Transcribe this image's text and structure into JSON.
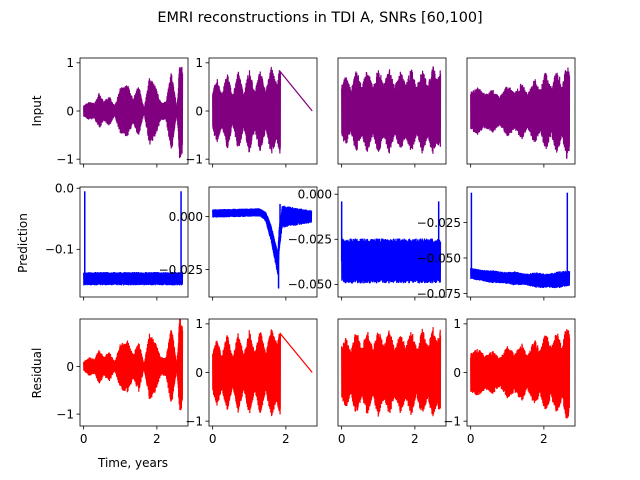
{
  "figure": {
    "title": "EMRI reconstructions in TDI A, SNRs [60,100]",
    "row_labels": [
      "Input",
      "Prediction",
      "Residual"
    ],
    "xlabel": "Time, years"
  },
  "colors": {
    "input": "#800080",
    "prediction": "#0000ff",
    "residual": "#ff0000"
  },
  "chart_data": [
    {
      "panel": "input-1",
      "type": "line",
      "color": "#800080",
      "xlim": [
        -0.1,
        2.85
      ],
      "ylim": [
        -1.1,
        1.1
      ],
      "xticks": [
        0,
        2
      ],
      "xtick_labels": [],
      "yticks": [
        -1,
        0,
        1
      ],
      "ytick_labels": [
        "−1",
        "0",
        "1"
      ],
      "t_range": [
        0.0,
        2.7
      ],
      "center": 0,
      "envelope": [
        [
          0.0,
          0.12
        ],
        [
          0.15,
          0.2
        ],
        [
          0.3,
          0.16
        ],
        [
          0.42,
          0.38
        ],
        [
          0.55,
          0.2
        ],
        [
          0.7,
          0.32
        ],
        [
          0.85,
          0.1
        ],
        [
          1.0,
          0.48
        ],
        [
          1.2,
          0.55
        ],
        [
          1.35,
          0.25
        ],
        [
          1.5,
          0.55
        ],
        [
          1.65,
          0.05
        ],
        [
          1.8,
          0.72
        ],
        [
          1.95,
          0.55
        ],
        [
          2.1,
          0.2
        ],
        [
          2.25,
          0.2
        ],
        [
          2.4,
          0.85
        ],
        [
          2.55,
          0.05
        ],
        [
          2.62,
          1.0
        ],
        [
          2.7,
          0.9
        ]
      ]
    },
    {
      "panel": "input-2",
      "type": "line",
      "color": "#800080",
      "xlim": [
        -0.1,
        2.85
      ],
      "ylim": [
        -1.1,
        1.1
      ],
      "xticks": [
        0,
        2
      ],
      "xtick_labels": [],
      "yticks": [
        -1,
        0,
        1
      ],
      "ytick_labels": [
        "−1",
        "0",
        "1"
      ],
      "t_range": [
        0.0,
        1.85
      ],
      "center": 0,
      "tail_to": 2.72,
      "envelope": [
        [
          0.0,
          0.4
        ],
        [
          0.12,
          0.7
        ],
        [
          0.25,
          0.35
        ],
        [
          0.4,
          0.8
        ],
        [
          0.55,
          0.3
        ],
        [
          0.7,
          0.85
        ],
        [
          0.85,
          0.35
        ],
        [
          1.0,
          0.9
        ],
        [
          1.15,
          0.4
        ],
        [
          1.3,
          0.88
        ],
        [
          1.45,
          0.4
        ],
        [
          1.6,
          0.92
        ],
        [
          1.75,
          0.6
        ],
        [
          1.85,
          0.95
        ]
      ]
    },
    {
      "panel": "input-3",
      "type": "line",
      "color": "#800080",
      "xlim": [
        -0.1,
        2.85
      ],
      "ylim": [
        -1.1,
        1.1
      ],
      "xticks": [
        0,
        2
      ],
      "xtick_labels": [],
      "yticks": [],
      "ytick_labels": [],
      "t_range": [
        0.0,
        2.7
      ],
      "center": 0,
      "envelope": [
        [
          0.0,
          0.55
        ],
        [
          0.12,
          0.75
        ],
        [
          0.25,
          0.45
        ],
        [
          0.4,
          0.9
        ],
        [
          0.55,
          0.5
        ],
        [
          0.7,
          0.9
        ],
        [
          0.85,
          0.5
        ],
        [
          1.0,
          0.92
        ],
        [
          1.15,
          0.55
        ],
        [
          1.3,
          0.9
        ],
        [
          1.45,
          0.5
        ],
        [
          1.6,
          0.85
        ],
        [
          1.75,
          0.55
        ],
        [
          1.9,
          0.9
        ],
        [
          2.05,
          0.5
        ],
        [
          2.2,
          0.92
        ],
        [
          2.35,
          0.55
        ],
        [
          2.5,
          0.95
        ],
        [
          2.6,
          0.65
        ],
        [
          2.7,
          0.9
        ]
      ]
    },
    {
      "panel": "input-4",
      "type": "line",
      "color": "#800080",
      "xlim": [
        -0.1,
        2.85
      ],
      "ylim": [
        -1.1,
        1.1
      ],
      "xticks": [
        0,
        2
      ],
      "xtick_labels": [],
      "yticks": [],
      "ytick_labels": [],
      "t_range": [
        0.0,
        2.7
      ],
      "center": 0,
      "envelope": [
        [
          0.0,
          0.4
        ],
        [
          0.2,
          0.5
        ],
        [
          0.4,
          0.35
        ],
        [
          0.6,
          0.45
        ],
        [
          0.8,
          0.3
        ],
        [
          1.0,
          0.55
        ],
        [
          1.2,
          0.4
        ],
        [
          1.4,
          0.6
        ],
        [
          1.55,
          0.35
        ],
        [
          1.75,
          0.7
        ],
        [
          1.9,
          0.45
        ],
        [
          2.05,
          0.85
        ],
        [
          2.2,
          0.5
        ],
        [
          2.35,
          0.9
        ],
        [
          2.5,
          0.55
        ],
        [
          2.62,
          1.0
        ],
        [
          2.7,
          0.85
        ]
      ]
    },
    {
      "panel": "prediction-1",
      "type": "line",
      "color": "#0000ff",
      "xlim": [
        -0.1,
        2.85
      ],
      "ylim": [
        -0.178,
        0.002
      ],
      "xticks": [
        0,
        2
      ],
      "xtick_labels": [],
      "yticks": [
        0.0,
        -0.1
      ],
      "ytick_labels": [
        "0.0",
        "−0.1"
      ],
      "t_range": [
        0.0,
        2.7
      ],
      "center": -0.148,
      "envelope": [
        [
          0.0,
          0.011
        ],
        [
          0.5,
          0.011
        ],
        [
          1.0,
          0.011
        ],
        [
          1.5,
          0.011
        ],
        [
          2.0,
          0.011
        ],
        [
          2.7,
          0.011
        ]
      ],
      "spikes": [
        {
          "t": 0.03,
          "value": -0.005
        },
        {
          "t": 2.66,
          "value": -0.005
        }
      ]
    },
    {
      "panel": "prediction-2",
      "type": "line",
      "color": "#0000ff",
      "xlim": [
        -0.1,
        2.85
      ],
      "ylim": [
        -0.038,
        0.014
      ],
      "xticks": [
        0,
        2
      ],
      "xtick_labels": [],
      "yticks": [
        0.0,
        -0.025
      ],
      "ytick_labels": [
        "0.000",
        "−0.025"
      ],
      "t_range": [
        0.0,
        2.7
      ],
      "center": 0.0,
      "envelope": [
        [
          0.0,
          0.002
        ],
        [
          0.5,
          0.002
        ],
        [
          1.0,
          0.002
        ],
        [
          1.4,
          0.002
        ],
        [
          1.6,
          0.004
        ],
        [
          1.8,
          0.006
        ],
        [
          2.0,
          0.005
        ],
        [
          2.7,
          0.003
        ]
      ],
      "trend": [
        [
          0.0,
          0.0015
        ],
        [
          1.3,
          0.002
        ],
        [
          1.45,
          0.0
        ],
        [
          1.6,
          -0.008
        ],
        [
          1.7,
          -0.016
        ],
        [
          1.78,
          -0.022
        ],
        [
          1.82,
          -0.01
        ],
        [
          1.9,
          0.0
        ],
        [
          2.7,
          0.0
        ]
      ],
      "spikes": [
        {
          "t": 1.8,
          "value": -0.034
        },
        {
          "t": 1.84,
          "value": 0.006
        }
      ]
    },
    {
      "panel": "prediction-3",
      "type": "line",
      "color": "#0000ff",
      "xlim": [
        -0.1,
        2.85
      ],
      "ylim": [
        -0.057,
        0.004
      ],
      "xticks": [
        0,
        2
      ],
      "xtick_labels": [],
      "yticks": [
        0.0,
        -0.025,
        -0.05
      ],
      "ytick_labels": [
        "0.000",
        "−0.025",
        "−0.050"
      ],
      "ytick_side": "left-inside",
      "t_range": [
        0.0,
        2.7
      ],
      "center": -0.037,
      "envelope": [
        [
          0.0,
          0.0125
        ],
        [
          0.5,
          0.0125
        ],
        [
          1.0,
          0.0125
        ],
        [
          1.5,
          0.0125
        ],
        [
          2.0,
          0.0125
        ],
        [
          2.7,
          0.0125
        ]
      ],
      "spikes": [
        {
          "t": 0.0,
          "value": -0.004
        },
        {
          "t": 2.65,
          "value": -0.004
        }
      ]
    },
    {
      "panel": "prediction-4",
      "type": "line",
      "color": "#0000ff",
      "xlim": [
        -0.1,
        2.85
      ],
      "ylim": [
        -0.0775,
        -0.0
      ],
      "xticks": [
        0,
        2
      ],
      "xtick_labels": [],
      "yticks": [
        -0.025,
        -0.05,
        -0.075
      ],
      "ytick_labels": [
        "−0.025",
        "−0.050",
        "−0.075"
      ],
      "ytick_side": "left-inside",
      "t_range": [
        0.0,
        2.7
      ],
      "center": -0.0635,
      "envelope": [
        [
          0.0,
          0.004
        ],
        [
          0.3,
          0.004
        ],
        [
          0.6,
          0.0045
        ],
        [
          0.9,
          0.004
        ],
        [
          1.2,
          0.005
        ],
        [
          1.5,
          0.004
        ],
        [
          1.8,
          0.0055
        ],
        [
          2.1,
          0.005
        ],
        [
          2.4,
          0.006
        ],
        [
          2.7,
          0.0055
        ]
      ],
      "trend": [
        [
          0.0,
          -0.061
        ],
        [
          0.5,
          -0.063
        ],
        [
          1.0,
          -0.064
        ],
        [
          1.5,
          -0.065
        ],
        [
          2.0,
          -0.066
        ],
        [
          2.4,
          -0.0655
        ],
        [
          2.7,
          -0.064
        ]
      ],
      "spikes": [
        {
          "t": 0.02,
          "value": -0.004
        },
        {
          "t": 2.64,
          "value": -0.004
        }
      ]
    },
    {
      "panel": "residual-1",
      "type": "line",
      "color": "#ff0000",
      "xlim": [
        -0.1,
        2.85
      ],
      "ylim": [
        -1.25,
        1.0
      ],
      "xticks": [
        0,
        2
      ],
      "xtick_labels": [
        "0",
        "2"
      ],
      "yticks": [
        -1,
        0
      ],
      "ytick_labels": [
        "−1",
        "0"
      ],
      "t_range": [
        0.0,
        2.7
      ],
      "center": 0,
      "envelope": [
        [
          0.0,
          0.1
        ],
        [
          0.15,
          0.2
        ],
        [
          0.3,
          0.16
        ],
        [
          0.42,
          0.38
        ],
        [
          0.55,
          0.2
        ],
        [
          0.7,
          0.32
        ],
        [
          0.85,
          0.1
        ],
        [
          1.0,
          0.48
        ],
        [
          1.2,
          0.55
        ],
        [
          1.35,
          0.25
        ],
        [
          1.5,
          0.55
        ],
        [
          1.65,
          0.05
        ],
        [
          1.8,
          0.72
        ],
        [
          1.95,
          0.55
        ],
        [
          2.1,
          0.2
        ],
        [
          2.25,
          0.2
        ],
        [
          2.4,
          0.85
        ],
        [
          2.55,
          0.05
        ],
        [
          2.62,
          1.05
        ],
        [
          2.7,
          0.9
        ]
      ]
    },
    {
      "panel": "residual-2",
      "type": "line",
      "color": "#ff0000",
      "xlim": [
        -0.1,
        2.85
      ],
      "ylim": [
        -1.1,
        1.1
      ],
      "xticks": [
        0,
        2
      ],
      "xtick_labels": [
        "0",
        "2"
      ],
      "yticks": [
        -1,
        0,
        1
      ],
      "ytick_labels": [
        "−1",
        "0",
        "1"
      ],
      "t_range": [
        0.0,
        1.85
      ],
      "center": 0,
      "tail_to": 2.72,
      "envelope": [
        [
          0.0,
          0.4
        ],
        [
          0.12,
          0.7
        ],
        [
          0.25,
          0.35
        ],
        [
          0.4,
          0.8
        ],
        [
          0.55,
          0.3
        ],
        [
          0.7,
          0.85
        ],
        [
          0.85,
          0.35
        ],
        [
          1.0,
          0.9
        ],
        [
          1.15,
          0.4
        ],
        [
          1.3,
          0.88
        ],
        [
          1.45,
          0.4
        ],
        [
          1.6,
          0.92
        ],
        [
          1.75,
          0.6
        ],
        [
          1.85,
          0.95
        ]
      ]
    },
    {
      "panel": "residual-3",
      "type": "line",
      "color": "#ff0000",
      "xlim": [
        -0.1,
        2.85
      ],
      "ylim": [
        -1.1,
        1.1
      ],
      "xticks": [
        0,
        2
      ],
      "xtick_labels": [
        "0",
        "2"
      ],
      "yticks": [],
      "ytick_labels": [],
      "t_range": [
        0.0,
        2.7
      ],
      "center": 0,
      "envelope": [
        [
          0.0,
          0.55
        ],
        [
          0.12,
          0.75
        ],
        [
          0.25,
          0.45
        ],
        [
          0.4,
          0.9
        ],
        [
          0.55,
          0.5
        ],
        [
          0.7,
          0.9
        ],
        [
          0.85,
          0.5
        ],
        [
          1.0,
          0.92
        ],
        [
          1.15,
          0.55
        ],
        [
          1.3,
          0.9
        ],
        [
          1.45,
          0.5
        ],
        [
          1.6,
          0.85
        ],
        [
          1.75,
          0.55
        ],
        [
          1.9,
          0.9
        ],
        [
          2.05,
          0.5
        ],
        [
          2.2,
          0.92
        ],
        [
          2.35,
          0.55
        ],
        [
          2.5,
          0.95
        ],
        [
          2.6,
          0.65
        ],
        [
          2.7,
          0.9
        ]
      ]
    },
    {
      "panel": "residual-4",
      "type": "line",
      "color": "#ff0000",
      "xlim": [
        -0.1,
        2.85
      ],
      "ylim": [
        -1.1,
        1.1
      ],
      "xticks": [
        0,
        2
      ],
      "xtick_labels": [
        "0",
        "2"
      ],
      "yticks": [
        -1,
        0,
        1
      ],
      "ytick_labels": [
        "−1",
        "0",
        "1"
      ],
      "ytick_side": "left-inside",
      "t_range": [
        0.0,
        2.7
      ],
      "center": 0,
      "envelope": [
        [
          0.0,
          0.4
        ],
        [
          0.2,
          0.5
        ],
        [
          0.4,
          0.35
        ],
        [
          0.6,
          0.45
        ],
        [
          0.8,
          0.3
        ],
        [
          1.0,
          0.55
        ],
        [
          1.2,
          0.4
        ],
        [
          1.4,
          0.6
        ],
        [
          1.55,
          0.35
        ],
        [
          1.75,
          0.7
        ],
        [
          1.9,
          0.45
        ],
        [
          2.05,
          0.85
        ],
        [
          2.2,
          0.5
        ],
        [
          2.35,
          0.9
        ],
        [
          2.5,
          0.55
        ],
        [
          2.62,
          1.0
        ],
        [
          2.7,
          0.85
        ]
      ]
    }
  ]
}
